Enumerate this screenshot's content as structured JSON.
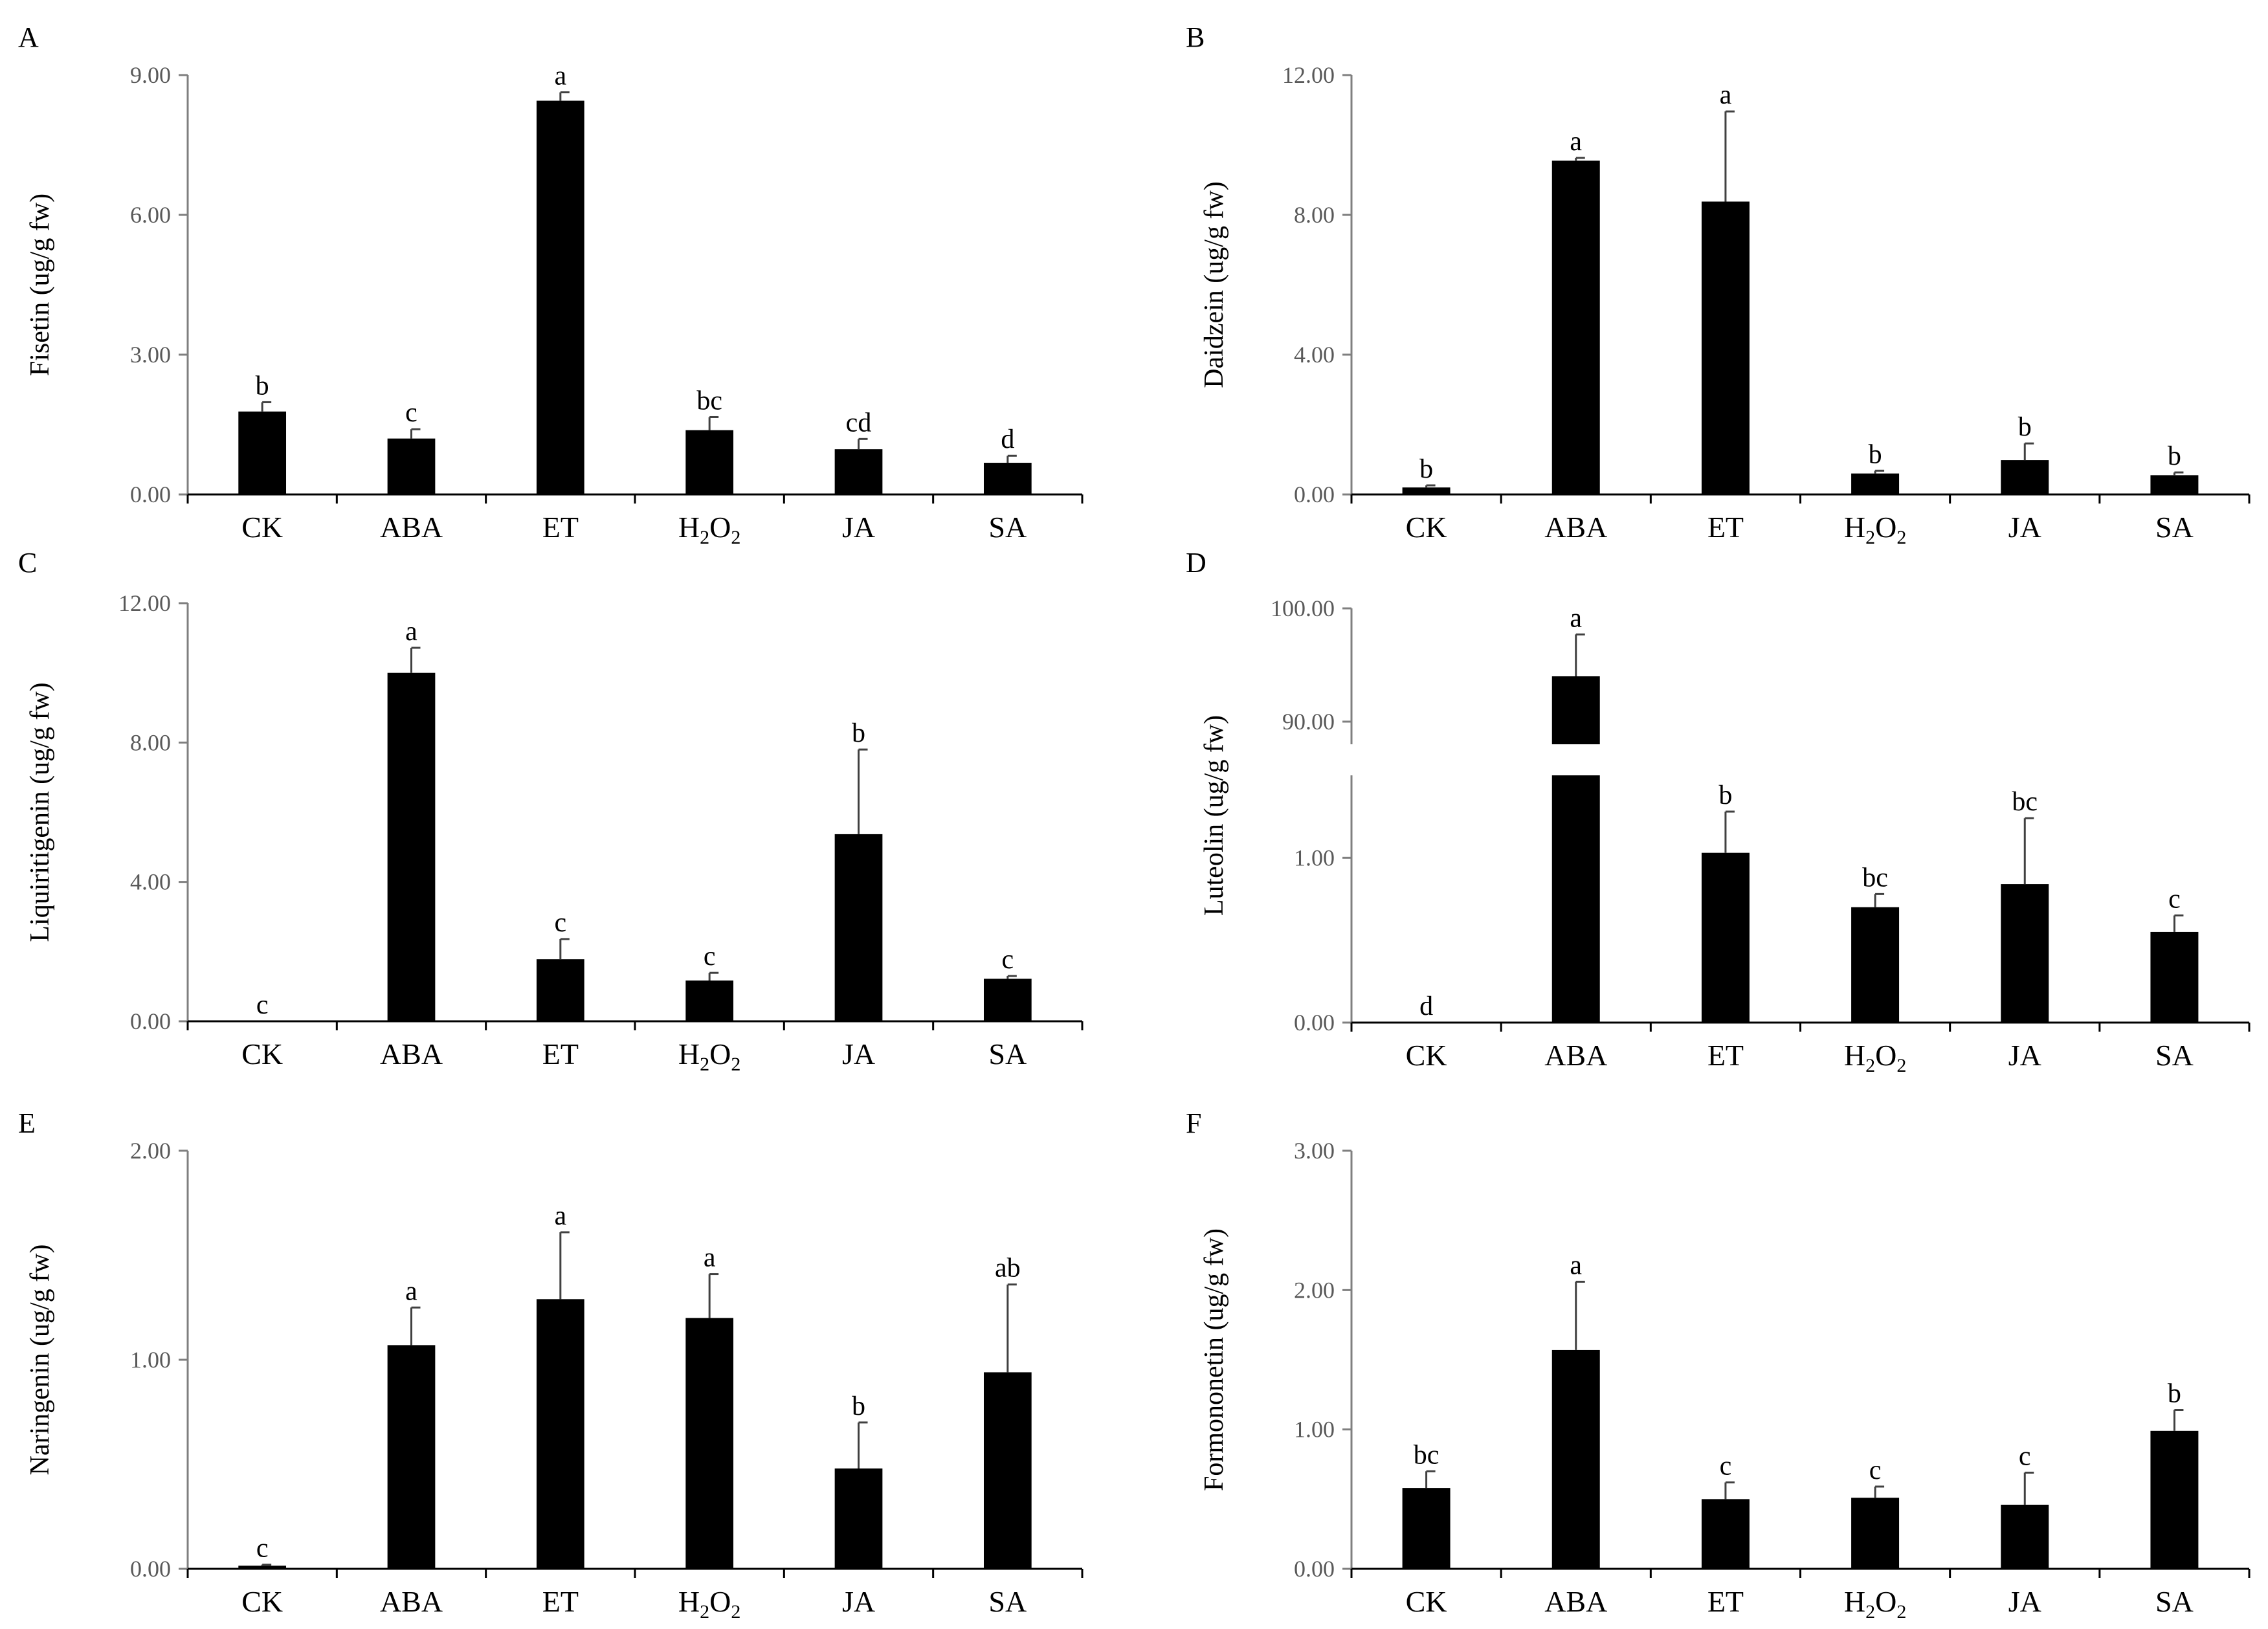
{
  "chart_data": [
    {
      "panel": "A",
      "type": "bar",
      "ylabel": "Fisetin (ug/g fw)",
      "categories": [
        "CK",
        "ABA",
        "ET",
        "H2O2",
        "JA",
        "SA"
      ],
      "category_labels": [
        {
          "text": "CK"
        },
        {
          "text": "ABA"
        },
        {
          "text": "ET"
        },
        {
          "text": "H",
          "sub1": "2",
          "mid": "O",
          "sub2": "2"
        },
        {
          "text": "JA"
        },
        {
          "text": "SA"
        }
      ],
      "values": [
        1.78,
        1.2,
        8.45,
        1.38,
        0.97,
        0.68
      ],
      "errors": [
        0.2,
        0.2,
        0.18,
        0.28,
        0.22,
        0.15
      ],
      "significance": [
        "b",
        "c",
        "a",
        "bc",
        "cd",
        "d"
      ],
      "ylim": [
        0,
        9
      ],
      "yticks": [
        0,
        3,
        6,
        9
      ],
      "ytick_labels": [
        "0.00",
        "3.00",
        "6.00",
        "9.00"
      ]
    },
    {
      "panel": "B",
      "type": "bar",
      "ylabel": "Daidzein (ug/g fw)",
      "categories": [
        "CK",
        "ABA",
        "ET",
        "H2O2",
        "JA",
        "SA"
      ],
      "category_labels": [
        {
          "text": "CK"
        },
        {
          "text": "ABA"
        },
        {
          "text": "ET"
        },
        {
          "text": "H",
          "sub1": "2",
          "mid": "O",
          "sub2": "2"
        },
        {
          "text": "JA"
        },
        {
          "text": "SA"
        }
      ],
      "values": [
        0.2,
        9.55,
        8.38,
        0.6,
        0.98,
        0.55
      ],
      "errors": [
        0.06,
        0.08,
        2.58,
        0.08,
        0.48,
        0.08
      ],
      "significance": [
        "b",
        "a",
        "a",
        "b",
        "b",
        "b"
      ],
      "ylim": [
        0,
        12
      ],
      "yticks": [
        0,
        4,
        8,
        12
      ],
      "ytick_labels": [
        "0.00",
        "4.00",
        "8.00",
        "12.00"
      ]
    },
    {
      "panel": "C",
      "type": "bar",
      "ylabel": "Liquiritigenin (ug/g fw)",
      "categories": [
        "CK",
        "ABA",
        "ET",
        "H2O2",
        "JA",
        "SA"
      ],
      "category_labels": [
        {
          "text": "CK"
        },
        {
          "text": "ABA"
        },
        {
          "text": "ET"
        },
        {
          "text": "H",
          "sub1": "2",
          "mid": "O",
          "sub2": "2"
        },
        {
          "text": "JA"
        },
        {
          "text": "SA"
        }
      ],
      "values": [
        0.0,
        10.0,
        1.78,
        1.17,
        5.37,
        1.22
      ],
      "errors": [
        0,
        0.72,
        0.58,
        0.22,
        2.43,
        0.08
      ],
      "significance": [
        "c",
        "a",
        "c",
        "c",
        "b",
        "c"
      ],
      "ylim": [
        0,
        12
      ],
      "yticks": [
        0,
        4,
        8,
        12
      ],
      "ytick_labels": [
        "0.00",
        "4.00",
        "8.00",
        "12.00"
      ]
    },
    {
      "panel": "D",
      "type": "bar",
      "ylabel": "Luteolin (ug/g fw)",
      "broken_axis": true,
      "lower_segment": {
        "ylim": [
          0,
          1.5
        ],
        "yticks": [
          0,
          1
        ],
        "ytick_labels": [
          "0.00",
          "1.00"
        ]
      },
      "upper_segment": {
        "ylim": [
          88,
          100
        ],
        "yticks": [
          90,
          100
        ],
        "ytick_labels": [
          "90.00",
          "100.00"
        ]
      },
      "categories": [
        "CK",
        "ABA",
        "ET",
        "H2O2",
        "JA",
        "SA"
      ],
      "category_labels": [
        {
          "text": "CK"
        },
        {
          "text": "ABA"
        },
        {
          "text": "ET"
        },
        {
          "text": "H",
          "sub1": "2",
          "mid": "O",
          "sub2": "2"
        },
        {
          "text": "JA"
        },
        {
          "text": "SA"
        }
      ],
      "values": [
        0.0,
        94.0,
        1.03,
        0.7,
        0.84,
        0.55
      ],
      "errors": [
        0,
        3.7,
        0.25,
        0.08,
        0.4,
        0.1
      ],
      "significance": [
        "d",
        "a",
        "b",
        "bc",
        "bc",
        "c"
      ]
    },
    {
      "panel": "E",
      "type": "bar",
      "ylabel": "Naringenin (ug/g fw)",
      "categories": [
        "CK",
        "ABA",
        "ET",
        "H2O2",
        "JA",
        "SA"
      ],
      "category_labels": [
        {
          "text": "CK"
        },
        {
          "text": "ABA"
        },
        {
          "text": "ET"
        },
        {
          "text": "H",
          "sub1": "2",
          "mid": "O",
          "sub2": "2"
        },
        {
          "text": "JA"
        },
        {
          "text": "SA"
        }
      ],
      "values": [
        0.015,
        1.07,
        1.29,
        1.2,
        0.48,
        0.94
      ],
      "errors": [
        0.005,
        0.18,
        0.32,
        0.21,
        0.22,
        0.42
      ],
      "significance": [
        "c",
        "a",
        "a",
        "a",
        "b",
        "ab"
      ],
      "ylim": [
        0,
        2
      ],
      "yticks": [
        0,
        1,
        2
      ],
      "ytick_labels": [
        "0.00",
        "1.00",
        "2.00"
      ]
    },
    {
      "panel": "F",
      "type": "bar",
      "ylabel": "Formononetin (ug/g fw)",
      "categories": [
        "CK",
        "ABA",
        "ET",
        "H2O2",
        "JA",
        "SA"
      ],
      "category_labels": [
        {
          "text": "CK"
        },
        {
          "text": "ABA"
        },
        {
          "text": "ET"
        },
        {
          "text": "H",
          "sub1": "2",
          "mid": "O",
          "sub2": "2"
        },
        {
          "text": "JA"
        },
        {
          "text": "SA"
        }
      ],
      "values": [
        0.58,
        1.57,
        0.5,
        0.51,
        0.46,
        0.99
      ],
      "errors": [
        0.12,
        0.49,
        0.12,
        0.08,
        0.23,
        0.15
      ],
      "significance": [
        "bc",
        "a",
        "c",
        "c",
        "c",
        "b"
      ],
      "ylim": [
        0,
        3
      ],
      "yticks": [
        0,
        1,
        2,
        3
      ],
      "ytick_labels": [
        "0.00",
        "1.00",
        "2.00",
        "3.00"
      ]
    }
  ]
}
